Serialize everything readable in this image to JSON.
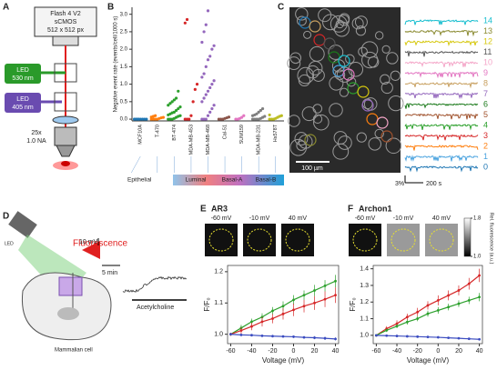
{
  "panel_labels": [
    "A",
    "B",
    "C",
    "D",
    "E",
    "F"
  ],
  "panel_a": {
    "camera": [
      "Flash 4 V2",
      "sCMOS",
      "512 x 512 px"
    ],
    "led_green": [
      "LED",
      "530 nm"
    ],
    "led_violet": [
      "LED",
      "405 nm"
    ],
    "objective": [
      "25x",
      "1.0 NA"
    ]
  },
  "chart_data": [
    {
      "type": "strip",
      "ylabel": "Negative event rate (events/cell/1000 s)",
      "categories": [
        "MCF10A",
        "T-470",
        "BT-474",
        "MDA-MB-453",
        "MDA-MB-468",
        "Cal-51",
        "SUM159",
        "MDA-MB-231",
        "Hs578T"
      ],
      "colors": [
        "#1f77b4",
        "#ff7f0e",
        "#2ca02c",
        "#d62728",
        "#9467bd",
        "#8c564b",
        "#e377c2",
        "#7f7f7f",
        "#bcbd22"
      ],
      "values": [
        [
          0,
          0,
          0,
          0,
          0,
          0,
          0,
          0,
          0,
          0
        ],
        [
          0,
          0,
          0,
          0,
          0.02,
          0.04,
          0.05,
          0.06,
          0.08,
          0.1
        ],
        [
          0,
          0,
          0,
          0.02,
          0.05,
          0.08,
          0.1,
          0.12,
          0.15,
          0.18,
          0.2,
          0.25,
          0.3,
          0.35,
          0.4,
          0.45,
          0.5,
          0.55,
          0.6,
          0.8
        ],
        [
          0,
          0,
          0,
          0.1,
          0.5,
          0.85,
          1.0,
          2.75,
          2.85
        ],
        [
          0,
          0,
          0,
          0.1,
          0.2,
          0.3,
          0.4,
          0.5,
          0.6,
          0.7,
          0.8,
          0.9,
          1.0,
          1.1,
          1.2,
          1.3,
          1.5,
          1.7,
          1.8,
          2.0,
          2.1,
          2.2,
          2.5,
          2.7,
          3.1
        ],
        [
          0,
          0,
          0,
          0.02,
          0.04,
          0.06
        ],
        [
          0,
          0,
          0.02,
          0.05,
          0.1
        ],
        [
          0,
          0,
          0,
          0,
          0.02,
          0.05,
          0.08,
          0.1,
          0.12,
          0.15,
          0.2,
          0.25,
          0.3
        ],
        [
          0,
          0,
          0,
          0.02,
          0.05,
          0.08,
          0.1,
          0.12
        ]
      ],
      "ylim": [
        -0.05,
        3.2
      ],
      "yticks": [
        {
          "value": 0,
          "label": "0.0"
        },
        0.5,
        {
          "value": 1,
          "label": "1.0"
        },
        1.5,
        {
          "value": 2,
          "label": "2.0"
        },
        2.5,
        {
          "value": 3,
          "label": "3.0"
        }
      ],
      "groups": [
        "Epithelial",
        "Luminal",
        "Basal-A",
        "Basal-B"
      ]
    },
    {
      "type": "line",
      "title": "AR3",
      "xlabel": "Voltage (mV)",
      "ylabel": "F/F₀",
      "x": [
        -60,
        -50,
        -40,
        -30,
        -20,
        -10,
        0,
        10,
        20,
        30,
        40
      ],
      "series": [
        {
          "color": "#2ca02c",
          "values": [
            1.0,
            1.02,
            1.04,
            1.055,
            1.075,
            1.09,
            1.11,
            1.125,
            1.14,
            1.155,
            1.17
          ],
          "errors": [
            0.005,
            0.01,
            0.01,
            0.012,
            0.012,
            0.015,
            0.015,
            0.015,
            0.018,
            0.018,
            0.02
          ]
        },
        {
          "color": "#d62728",
          "values": [
            1.0,
            1.012,
            1.025,
            1.04,
            1.05,
            1.065,
            1.078,
            1.09,
            1.1,
            1.112,
            1.125
          ],
          "errors": [
            0.005,
            0.01,
            0.012,
            0.015,
            0.015,
            0.018,
            0.02,
            0.02,
            0.022,
            0.025,
            0.025
          ]
        },
        {
          "color": "#3b4cc0",
          "values": [
            1.0,
            0.998,
            0.997,
            0.995,
            0.994,
            0.993,
            0.992,
            0.99,
            0.989,
            0.987,
            0.985
          ],
          "errors": [
            0.002,
            0.003,
            0.003,
            0.003,
            0.004,
            0.004,
            0.004,
            0.004,
            0.005,
            0.005,
            0.005
          ]
        }
      ],
      "xlim": [
        -63,
        43
      ],
      "ylim": [
        0.97,
        1.22
      ],
      "xticks": [
        -60,
        -40,
        -20,
        0,
        20,
        40
      ],
      "yticks": [
        {
          "value": 1,
          "label": "1.0"
        },
        1.1,
        1.2
      ]
    },
    {
      "type": "line",
      "title": "Archon1",
      "xlabel": "Voltage (mV)",
      "ylabel": "F/F₀",
      "x": [
        -60,
        -50,
        -40,
        -30,
        -20,
        -10,
        0,
        10,
        20,
        30,
        40
      ],
      "series": [
        {
          "color": "#d62728",
          "values": [
            1.0,
            1.04,
            1.07,
            1.11,
            1.14,
            1.18,
            1.21,
            1.24,
            1.27,
            1.31,
            1.36
          ],
          "errors": [
            0.005,
            0.015,
            0.02,
            0.02,
            0.025,
            0.025,
            0.03,
            0.03,
            0.03,
            0.035,
            0.04
          ]
        },
        {
          "color": "#2ca02c",
          "values": [
            1.0,
            1.03,
            1.055,
            1.08,
            1.1,
            1.13,
            1.15,
            1.17,
            1.19,
            1.21,
            1.23
          ],
          "errors": [
            0.005,
            0.01,
            0.012,
            0.015,
            0.015,
            0.018,
            0.02,
            0.02,
            0.02,
            0.022,
            0.025
          ]
        },
        {
          "color": "#3b4cc0",
          "values": [
            1.0,
            0.998,
            0.996,
            0.994,
            0.992,
            0.99,
            0.988,
            0.985,
            0.982,
            0.979,
            0.976
          ],
          "errors": [
            0.002,
            0.003,
            0.003,
            0.003,
            0.004,
            0.004,
            0.004,
            0.004,
            0.005,
            0.005,
            0.005
          ]
        }
      ],
      "xlim": [
        -63,
        43
      ],
      "ylim": [
        0.95,
        1.42
      ],
      "xticks": [
        -60,
        -40,
        -20,
        0,
        20,
        40
      ],
      "yticks": [
        {
          "value": 1,
          "label": "1.0"
        },
        1.1,
        1.2,
        1.3,
        1.4
      ]
    }
  ],
  "panel_c": {
    "scale_bar": "100 µm",
    "trace_labels": [
      "0",
      "1",
      "2",
      "3",
      "4",
      "5",
      "6",
      "7",
      "8",
      "9",
      "10",
      "11",
      "12",
      "13",
      "14"
    ],
    "trace_colors": [
      "#1f77b4",
      "#4aa3df",
      "#ff7f0e",
      "#d62728",
      "#2ca02c",
      "#a0522d",
      "#1b7a1b",
      "#9467bd",
      "#c8a060",
      "#e377c2",
      "#f4a6c8",
      "#555555",
      "#d6c80e",
      "#8a8a30",
      "#17becf"
    ],
    "scale_y": "3%",
    "scale_x": "200 s"
  },
  "panel_d": {
    "fluorescence": "Fluorescence",
    "led": "LED",
    "cell": "Mammalian cell",
    "scale_y": "10 mV",
    "scale_x": "5 min",
    "stimulus": "Acetylcholine"
  },
  "panel_e": {
    "images": [
      "-60 mV",
      "-10 mV",
      "40 mV"
    ]
  },
  "panel_f": {
    "images": [
      "-60 mV",
      "-10 mV",
      "40 mV"
    ],
    "colorbar": {
      "ticks": [
        1.8,
        {
          "value": 1,
          "label": "1.0"
        }
      ],
      "label": "Rel. fluorescence (a.u.)"
    }
  }
}
